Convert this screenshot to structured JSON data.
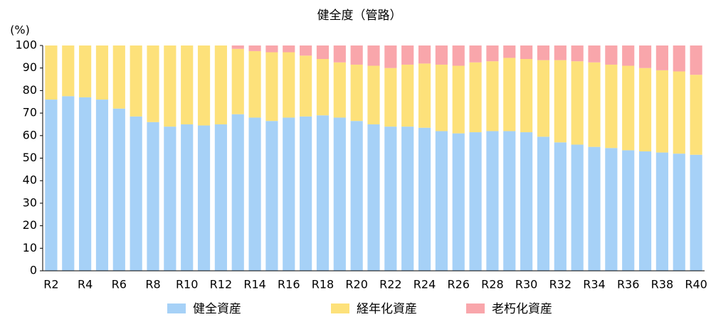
{
  "chart_data": {
    "type": "stacked_bar",
    "title": "健全度（管路）",
    "y_label": "(%)",
    "categories": [
      "R2",
      null,
      "R4",
      null,
      "R6",
      null,
      "R8",
      null,
      "R10",
      null,
      "R12",
      null,
      "R14",
      null,
      "R16",
      null,
      "R18",
      null,
      "R20",
      null,
      "R22",
      null,
      "R24",
      null,
      "R26",
      null,
      "R28",
      null,
      "R30",
      null,
      "R32",
      null,
      "R34",
      null,
      "R36",
      null,
      "R38",
      null,
      "R40"
    ],
    "series": [
      {
        "name": "健全資産",
        "color": "#a6d1f7",
        "values": [
          76,
          77.5,
          77,
          76,
          72,
          68.5,
          66,
          64,
          65,
          64.5,
          65,
          69.5,
          68,
          66.5,
          68,
          68.5,
          69,
          68,
          66.5,
          65,
          64,
          64,
          63.5,
          62,
          61,
          61.5,
          62,
          62,
          61.5,
          59.5,
          57,
          56,
          55,
          54.5,
          53.5,
          53,
          52.5,
          52,
          51.5
        ]
      },
      {
        "name": "経年化資産",
        "color": "#fde17a",
        "values": [
          24,
          22.5,
          23,
          24,
          28,
          31.5,
          34,
          36,
          35,
          35.5,
          35,
          29,
          29.5,
          30.5,
          29,
          27,
          25,
          24.5,
          25,
          26,
          26,
          27.5,
          28.5,
          29.5,
          30,
          31,
          31,
          32.5,
          32.5,
          34,
          36.5,
          37,
          37.5,
          37,
          37.5,
          37,
          36.5,
          36.5,
          35.5
        ]
      },
      {
        "name": "老朽化資産",
        "color": "#f9a6ab",
        "values": [
          0,
          0,
          0,
          0,
          0,
          0,
          0,
          0,
          0,
          0,
          0,
          1.5,
          2.5,
          3,
          3,
          4.5,
          6,
          7.5,
          8.5,
          9,
          10,
          8.5,
          8,
          8.5,
          9,
          7.5,
          7,
          5.5,
          6,
          6.5,
          6.5,
          7,
          7.5,
          8.5,
          9,
          10,
          11,
          11.5,
          13
        ]
      }
    ],
    "ylim": [
      0,
      100
    ],
    "yticks": [
      0,
      10,
      20,
      30,
      40,
      50,
      60,
      70,
      80,
      90,
      100
    ],
    "grid": false,
    "legend": "bottom"
  }
}
